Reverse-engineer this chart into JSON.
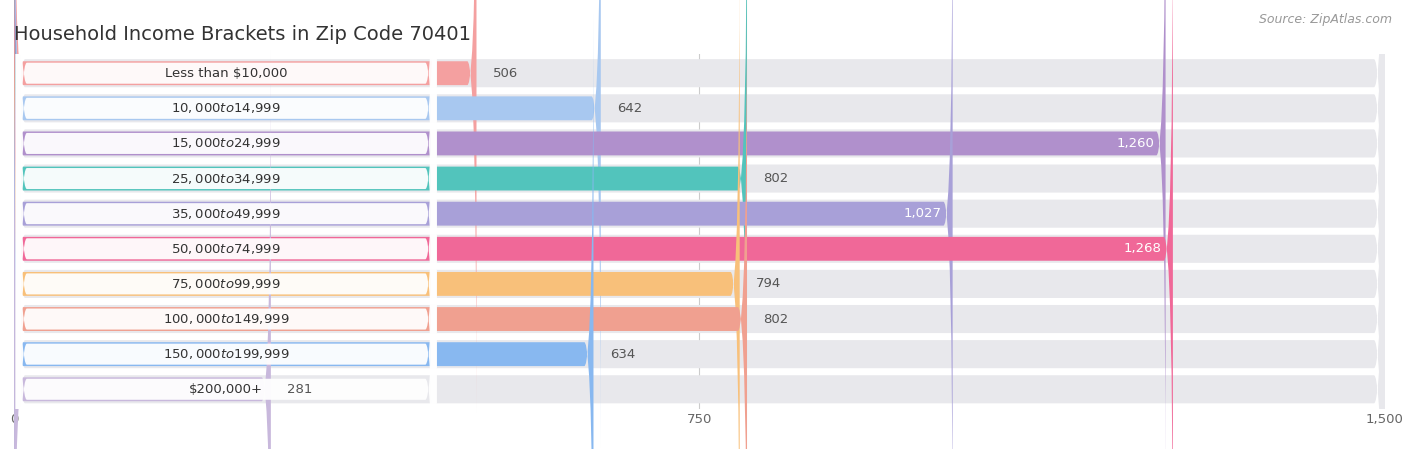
{
  "title": "Household Income Brackets in Zip Code 70401",
  "source": "Source: ZipAtlas.com",
  "categories": [
    "Less than $10,000",
    "$10,000 to $14,999",
    "$15,000 to $24,999",
    "$25,000 to $34,999",
    "$35,000 to $49,999",
    "$50,000 to $74,999",
    "$75,000 to $99,999",
    "$100,000 to $149,999",
    "$150,000 to $199,999",
    "$200,000+"
  ],
  "values": [
    506,
    642,
    1260,
    802,
    1027,
    1268,
    794,
    802,
    634,
    281
  ],
  "bar_colors": [
    "#F4A0A0",
    "#A8C8F0",
    "#B090CC",
    "#52C4BC",
    "#A8A0D8",
    "#F06898",
    "#F8C07A",
    "#F0A090",
    "#88B8F0",
    "#C8B8DC"
  ],
  "bar_bg_color": "#e8e8ec",
  "label_bg_color": "#ffffff",
  "xlim": [
    0,
    1500
  ],
  "xticks": [
    0,
    750,
    1500
  ],
  "white_threshold": 900,
  "title_fontsize": 14,
  "label_fontsize": 9.5,
  "value_fontsize": 9.5,
  "source_fontsize": 9
}
